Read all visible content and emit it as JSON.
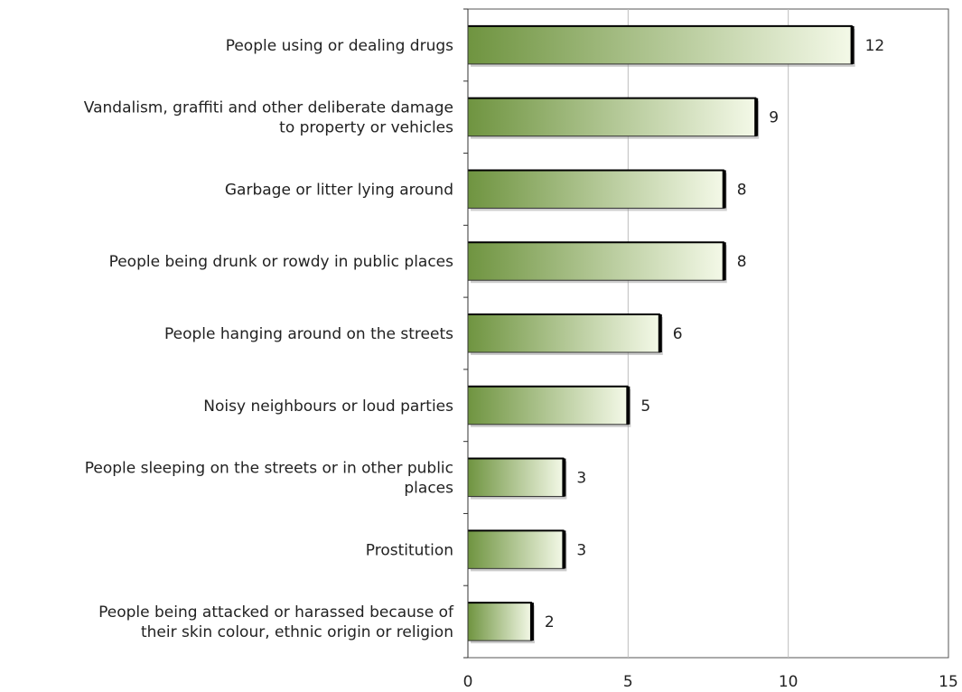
{
  "chart_data": {
    "type": "bar",
    "orientation": "horizontal",
    "title": "",
    "xlabel": "",
    "ylabel": "",
    "xlim": [
      0,
      15
    ],
    "xticks": [
      0,
      5,
      10,
      15
    ],
    "grid": "vertical",
    "legend": "none",
    "categories": [
      [
        "People using or dealing drugs"
      ],
      [
        "Vandalism, graffiti and other deliberate damage",
        "to property or vehicles"
      ],
      [
        "Garbage or litter lying around"
      ],
      [
        "People being drunk or rowdy in public places"
      ],
      [
        "People hanging around on the streets"
      ],
      [
        "Noisy neighbours or loud parties"
      ],
      [
        "People sleeping on the streets or in other public",
        "places"
      ],
      [
        "Prostitution"
      ],
      [
        "People being attacked or harassed because of",
        "their skin colour, ethnic origin or religion"
      ]
    ],
    "values": [
      12,
      9,
      8,
      8,
      6,
      5,
      3,
      3,
      2
    ],
    "bar_color_light": "#f4f9e8",
    "bar_color_dark": "#6f9440",
    "bar_border": "#000000",
    "gridline_color": "#bdbdbd"
  }
}
